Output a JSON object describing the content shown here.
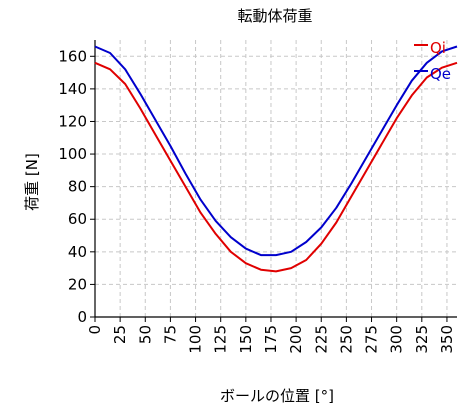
{
  "chart_data": {
    "type": "line",
    "title": "転動体荷重",
    "xlabel": "ボールの位置 [°]",
    "ylabel": "荷重 [N]",
    "xlim": [
      0,
      360
    ],
    "ylim": [
      0,
      170
    ],
    "xticks": [
      0,
      25,
      50,
      75,
      100,
      125,
      150,
      175,
      200,
      225,
      250,
      275,
      300,
      325,
      350
    ],
    "yticks": [
      0,
      20,
      40,
      60,
      80,
      100,
      120,
      140,
      160
    ],
    "grid": true,
    "legend_position": "top-right",
    "series": [
      {
        "name": "Qi",
        "color": "#e00000",
        "x": [
          0,
          15,
          30,
          45,
          60,
          75,
          90,
          105,
          120,
          135,
          150,
          165,
          180,
          195,
          210,
          225,
          240,
          255,
          270,
          285,
          300,
          315,
          330,
          345,
          360
        ],
        "y": [
          156,
          152,
          143,
          128,
          112,
          96,
          80,
          64,
          51,
          40,
          33,
          29,
          28,
          30,
          35,
          45,
          58,
          74,
          90,
          106,
          122,
          136,
          147,
          153,
          156
        ]
      },
      {
        "name": "Qe",
        "color": "#0000cc",
        "x": [
          0,
          15,
          30,
          45,
          60,
          75,
          90,
          105,
          120,
          135,
          150,
          165,
          180,
          195,
          210,
          225,
          240,
          255,
          270,
          285,
          300,
          315,
          330,
          345,
          360
        ],
        "y": [
          166,
          162,
          152,
          137,
          121,
          105,
          88,
          72,
          59,
          49,
          42,
          38,
          38,
          40,
          46,
          55,
          67,
          82,
          98,
          114,
          130,
          145,
          156,
          163,
          166
        ]
      }
    ]
  }
}
